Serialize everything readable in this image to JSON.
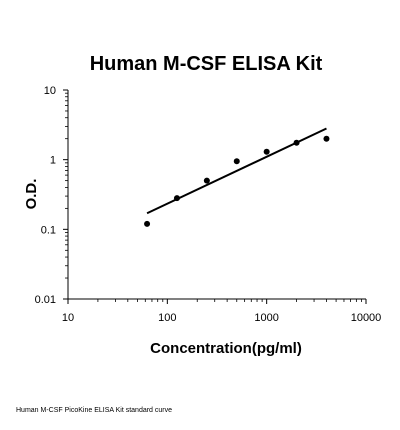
{
  "chart_data": {
    "type": "scatter",
    "title": "Human M-CSF ELISA Kit",
    "xlabel": "Concentration(pg/ml)",
    "ylabel": "O.D.",
    "x_scale": "log",
    "y_scale": "log",
    "xlim": [
      10,
      10000
    ],
    "ylim": [
      0.01,
      10
    ],
    "x_ticks": [
      {
        "value": 10,
        "label": "10"
      },
      {
        "value": 100,
        "label": "100"
      },
      {
        "value": 1000,
        "label": "1000"
      },
      {
        "value": 10000,
        "label": "10000"
      }
    ],
    "y_ticks": [
      {
        "value": 0.01,
        "label": "0.01"
      },
      {
        "value": 0.1,
        "label": "0.1"
      },
      {
        "value": 1,
        "label": "1"
      },
      {
        "value": 10,
        "label": "10"
      }
    ],
    "grid": false,
    "series": [
      {
        "x": [
          62.5,
          125,
          250,
          500,
          1000,
          2000,
          4000
        ],
        "y": [
          0.12,
          0.28,
          0.5,
          0.95,
          1.3,
          1.75,
          2.0
        ],
        "marker": "circle",
        "color": "#000000"
      }
    ],
    "trendline": {
      "x": [
        62.5,
        4000
      ],
      "y": [
        0.17,
        2.8
      ],
      "color": "#000000"
    }
  },
  "caption": "Human M-CSF PicoKine ELISA Kit standard curve"
}
